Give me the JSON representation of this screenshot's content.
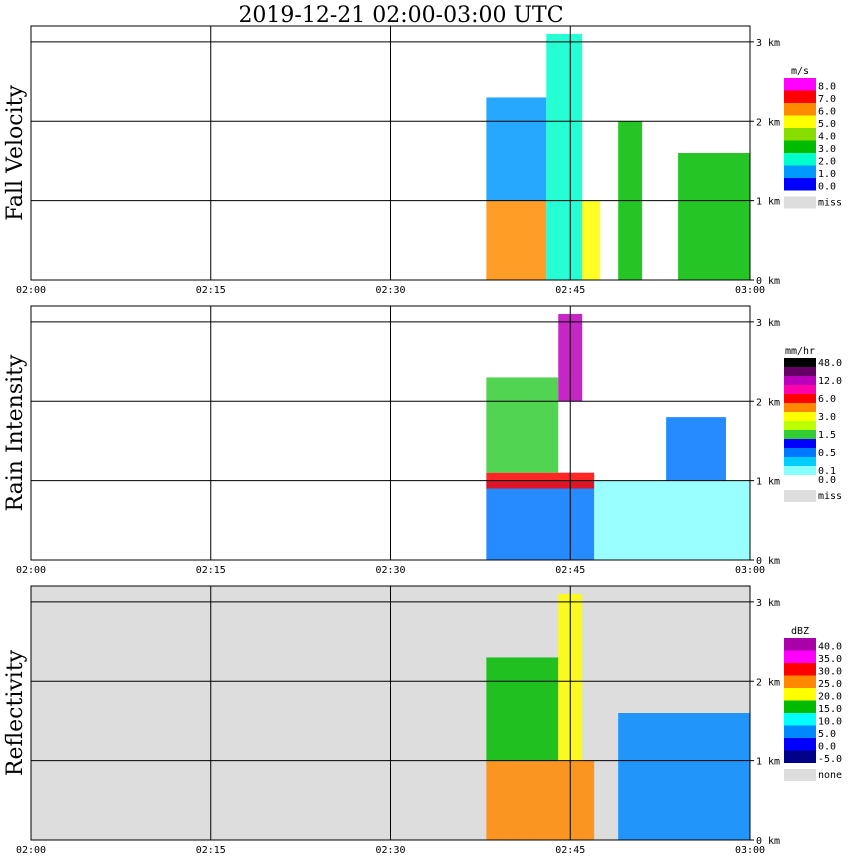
{
  "title": "2019-12-21   02:00-03:00 UTC",
  "chart_data": [
    {
      "type": "heatmap",
      "ylabel": "Fall Velocity",
      "xticks": [
        "02:00",
        "02:15",
        "02:30",
        "02:45",
        "03:00"
      ],
      "yticks": [
        "0 km",
        "1 km",
        "2 km",
        "3 km"
      ],
      "xlim": [
        "02:00",
        "03:00"
      ],
      "ylim_km": [
        0,
        3.2
      ],
      "grid": true,
      "background": "#ffffff",
      "legend": {
        "unit": "m/s",
        "levels": [
          {
            "label": "8.0",
            "color": "#ff00ff"
          },
          {
            "label": "7.0",
            "color": "#ff0000"
          },
          {
            "label": "6.0",
            "color": "#ff8c00"
          },
          {
            "label": "5.0",
            "color": "#ffff00"
          },
          {
            "label": "4.0",
            "color": "#88dd00"
          },
          {
            "label": "3.0",
            "color": "#00bb00"
          },
          {
            "label": "2.0",
            "color": "#00ffcc"
          },
          {
            "label": "1.0",
            "color": "#0099ff"
          },
          {
            "label": "0.0",
            "color": "#0000ff"
          }
        ],
        "missing": {
          "label": "miss",
          "color": "#dddddd"
        }
      },
      "echoes": [
        {
          "t0": 38,
          "t1": 43,
          "hmin": 0.0,
          "hmax": 1.0,
          "band": "6.0"
        },
        {
          "t0": 38,
          "t1": 43,
          "hmin": 1.0,
          "hmax": 2.3,
          "band": "1.0"
        },
        {
          "t0": 43,
          "t1": 46,
          "hmin": 0.0,
          "hmax": 3.1,
          "band": "2.0"
        },
        {
          "t0": 46,
          "t1": 47.5,
          "hmin": 0.0,
          "hmax": 1.0,
          "band": "5.0"
        },
        {
          "t0": 49,
          "t1": 51,
          "hmin": 0.0,
          "hmax": 2.0,
          "band": "3.0"
        },
        {
          "t0": 54,
          "t1": 60,
          "hmin": 0.0,
          "hmax": 1.6,
          "band": "3.0"
        }
      ]
    },
    {
      "type": "heatmap",
      "ylabel": "Rain Intensity",
      "xticks": [
        "02:00",
        "02:15",
        "02:30",
        "02:45",
        "03:00"
      ],
      "yticks": [
        "0 km",
        "1 km",
        "2 km",
        "3 km"
      ],
      "xlim": [
        "02:00",
        "03:00"
      ],
      "ylim_km": [
        0,
        3.2
      ],
      "grid": true,
      "background": "#ffffff",
      "legend": {
        "unit": "mm/hr",
        "levels": [
          {
            "label": "48.0",
            "color": "#000000"
          },
          {
            "label": "",
            "color": "#660066"
          },
          {
            "label": "12.0",
            "color": "#bb00bb"
          },
          {
            "label": "",
            "color": "#ff00aa"
          },
          {
            "label": "6.0",
            "color": "#ff0000"
          },
          {
            "label": "",
            "color": "#ff8800"
          },
          {
            "label": "3.0",
            "color": "#ffff00"
          },
          {
            "label": "",
            "color": "#bbff00"
          },
          {
            "label": "1.5",
            "color": "#33cc33"
          },
          {
            "label": "",
            "color": "#0000ff"
          },
          {
            "label": "0.5",
            "color": "#0077ff"
          },
          {
            "label": "",
            "color": "#00ccff"
          },
          {
            "label": "0.1",
            "color": "#88ffff"
          },
          {
            "label": "0.0",
            "color": "#ffffff"
          }
        ],
        "missing": {
          "label": "miss",
          "color": "#dddddd"
        }
      },
      "echoes": [
        {
          "t0": 38,
          "t1": 47,
          "hmin": 0.0,
          "hmax": 1.0,
          "band": "0.5"
        },
        {
          "t0": 38,
          "t1": 47,
          "hmin": 0.9,
          "hmax": 1.1,
          "band": "6.0"
        },
        {
          "t0": 38,
          "t1": 44,
          "hmin": 1.1,
          "hmax": 2.3,
          "band": "1.5"
        },
        {
          "t0": 44,
          "t1": 46,
          "hmin": 2.0,
          "hmax": 3.1,
          "band": "12.0"
        },
        {
          "t0": 47,
          "t1": 60,
          "hmin": 0.0,
          "hmax": 1.0,
          "band": "0.1"
        },
        {
          "t0": 53,
          "t1": 58,
          "hmin": 1.0,
          "hmax": 1.8,
          "band": "0.5"
        }
      ]
    },
    {
      "type": "heatmap",
      "ylabel": "Reflectivity",
      "xticks": [
        "02:00",
        "02:15",
        "02:30",
        "02:45",
        "03:00"
      ],
      "yticks": [
        "0 km",
        "1 km",
        "2 km",
        "3 km"
      ],
      "xlim": [
        "02:00",
        "03:00"
      ],
      "ylim_km": [
        0,
        3.2
      ],
      "grid": true,
      "background": "#dddddd",
      "legend": {
        "unit": "dBZ",
        "levels": [
          {
            "label": "40.0",
            "color": "#aa00aa"
          },
          {
            "label": "35.0",
            "color": "#ff00ff"
          },
          {
            "label": "30.0",
            "color": "#ff0000"
          },
          {
            "label": "25.0",
            "color": "#ff8800"
          },
          {
            "label": "20.0",
            "color": "#ffff00"
          },
          {
            "label": "15.0",
            "color": "#00bb00"
          },
          {
            "label": "10.0",
            "color": "#00ffff"
          },
          {
            "label": "5.0",
            "color": "#0088ff"
          },
          {
            "label": "0.0",
            "color": "#0000ff"
          },
          {
            "label": "-5.0",
            "color": "#000088"
          }
        ],
        "missing": {
          "label": "none",
          "color": "#dddddd"
        }
      },
      "echoes": [
        {
          "t0": 38,
          "t1": 47,
          "hmin": 0.0,
          "hmax": 1.0,
          "band": "25.0"
        },
        {
          "t0": 38,
          "t1": 44,
          "hmin": 1.0,
          "hmax": 2.3,
          "band": "15.0"
        },
        {
          "t0": 44,
          "t1": 46,
          "hmin": 1.0,
          "hmax": 3.1,
          "band": "20.0"
        },
        {
          "t0": 49,
          "t1": 60,
          "hmin": 0.0,
          "hmax": 1.6,
          "band": "5.0"
        }
      ]
    }
  ]
}
